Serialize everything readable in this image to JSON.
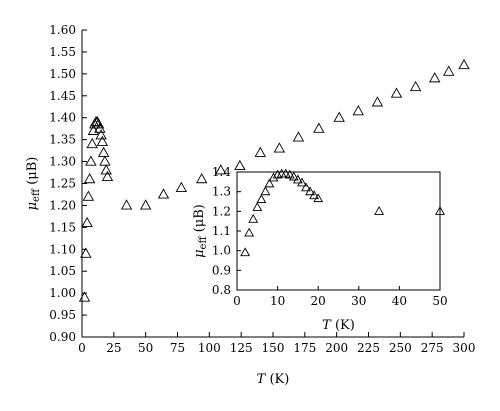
{
  "chart_data": [
    {
      "id": "main",
      "type": "scatter",
      "marker": "open-triangle",
      "xlabel_var": "T",
      "xlabel_unit": " (K)",
      "ylabel_sym": "μ",
      "ylabel_sub": "eff",
      "ylabel_unit": " (μB)",
      "xlim": [
        0,
        300
      ],
      "ylim": [
        0.9,
        1.6
      ],
      "xticks": [
        "0",
        "25",
        "50",
        "75",
        "100",
        "125",
        "150",
        "175",
        "200",
        "225",
        "250",
        "275",
        "300"
      ],
      "yticks": [
        "0.90",
        "0.95",
        "1.00",
        "1.05",
        "1.10",
        "1.15",
        "1.20",
        "1.25",
        "1.30",
        "1.35",
        "1.40",
        "1.45",
        "1.50",
        "1.55",
        "1.60"
      ],
      "points": [
        [
          2,
          0.99
        ],
        [
          3,
          1.09
        ],
        [
          4,
          1.16
        ],
        [
          5,
          1.22
        ],
        [
          6,
          1.26
        ],
        [
          7,
          1.3
        ],
        [
          8,
          1.34
        ],
        [
          9,
          1.37
        ],
        [
          10,
          1.385
        ],
        [
          11,
          1.39
        ],
        [
          12,
          1.39
        ],
        [
          13,
          1.385
        ],
        [
          14,
          1.375
        ],
        [
          15,
          1.36
        ],
        [
          16,
          1.345
        ],
        [
          17,
          1.32
        ],
        [
          18,
          1.3
        ],
        [
          19,
          1.28
        ],
        [
          20,
          1.265
        ],
        [
          35,
          1.2
        ],
        [
          50,
          1.2
        ],
        [
          64,
          1.225
        ],
        [
          78,
          1.24
        ],
        [
          94,
          1.26
        ],
        [
          109,
          1.28
        ],
        [
          124,
          1.29
        ],
        [
          140,
          1.32
        ],
        [
          155,
          1.33
        ],
        [
          170,
          1.355
        ],
        [
          186,
          1.375
        ],
        [
          202,
          1.4
        ],
        [
          217,
          1.415
        ],
        [
          232,
          1.435
        ],
        [
          247,
          1.455
        ],
        [
          262,
          1.47
        ],
        [
          277,
          1.49
        ],
        [
          288,
          1.505
        ],
        [
          300,
          1.52
        ]
      ]
    },
    {
      "id": "inset",
      "type": "scatter",
      "marker": "open-triangle",
      "xlabel_var": "T",
      "xlabel_unit": " (K)",
      "ylabel_sym": "μ",
      "ylabel_sub": "eff",
      "ylabel_unit": " (μB)",
      "xlim": [
        0,
        50
      ],
      "ylim": [
        0.8,
        1.4
      ],
      "xticks": [
        "0",
        "10",
        "20",
        "30",
        "40",
        "50"
      ],
      "yticks": [
        "0.8",
        "0.9",
        "1.0",
        "1.1",
        "1.2",
        "1.3",
        "1.4"
      ],
      "points": [
        [
          2,
          0.99
        ],
        [
          3,
          1.09
        ],
        [
          4,
          1.16
        ],
        [
          5,
          1.22
        ],
        [
          6,
          1.26
        ],
        [
          7,
          1.3
        ],
        [
          8,
          1.34
        ],
        [
          9,
          1.37
        ],
        [
          10,
          1.385
        ],
        [
          11,
          1.39
        ],
        [
          12,
          1.39
        ],
        [
          13,
          1.385
        ],
        [
          14,
          1.375
        ],
        [
          15,
          1.36
        ],
        [
          16,
          1.345
        ],
        [
          17,
          1.32
        ],
        [
          18,
          1.3
        ],
        [
          19,
          1.28
        ],
        [
          20,
          1.265
        ],
        [
          35,
          1.2
        ],
        [
          50,
          1.2
        ]
      ]
    }
  ]
}
